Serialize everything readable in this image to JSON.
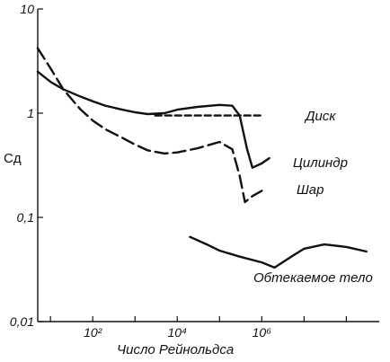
{
  "chart_data": {
    "type": "line",
    "title": "",
    "xlabel": "Число Рейнольдса",
    "ylabel": "Сд",
    "x_scale": "log",
    "y_scale": "log",
    "xlim": [
      5,
      600000000
    ],
    "ylim": [
      0.01,
      10
    ],
    "grid": false,
    "legend": "inline labels",
    "x_tick_labels": [
      {
        "value": 100,
        "label": "10²"
      },
      {
        "value": 10000,
        "label": "10⁴"
      },
      {
        "value": 1000000,
        "label": "10⁶"
      }
    ],
    "y_tick_labels": [
      {
        "value": 10,
        "label": "10"
      },
      {
        "value": 1,
        "label": "1"
      },
      {
        "value": 0.1,
        "label": "0,1"
      },
      {
        "value": 0.01,
        "label": "0,01"
      }
    ],
    "series": [
      {
        "name": "Цилиндр",
        "style": "solid",
        "points": [
          [
            5,
            2.5
          ],
          [
            10,
            2.0
          ],
          [
            20,
            1.7
          ],
          [
            50,
            1.45
          ],
          [
            100,
            1.3
          ],
          [
            200,
            1.18
          ],
          [
            500,
            1.08
          ],
          [
            1000,
            1.02
          ],
          [
            2000,
            0.98
          ],
          [
            5000,
            1.0
          ],
          [
            10000,
            1.08
          ],
          [
            30000,
            1.15
          ],
          [
            100000,
            1.2
          ],
          [
            200000,
            1.18
          ],
          [
            300000,
            0.95
          ],
          [
            450000,
            0.45
          ],
          [
            600000,
            0.3
          ],
          [
            1000000,
            0.33
          ],
          [
            1500000,
            0.37
          ]
        ]
      },
      {
        "name": "Шар",
        "style": "dashed",
        "points": [
          [
            5,
            4.2
          ],
          [
            10,
            2.7
          ],
          [
            20,
            1.7
          ],
          [
            50,
            1.1
          ],
          [
            100,
            0.85
          ],
          [
            200,
            0.7
          ],
          [
            500,
            0.58
          ],
          [
            1000,
            0.5
          ],
          [
            2000,
            0.44
          ],
          [
            5000,
            0.41
          ],
          [
            10000,
            0.42
          ],
          [
            30000,
            0.46
          ],
          [
            100000,
            0.53
          ],
          [
            200000,
            0.45
          ],
          [
            300000,
            0.25
          ],
          [
            400000,
            0.14
          ],
          [
            600000,
            0.16
          ],
          [
            1000000,
            0.18
          ]
        ]
      },
      {
        "name": "Диск",
        "style": "dashed",
        "points": [
          [
            3000,
            0.95
          ],
          [
            1000000,
            0.95
          ]
        ]
      },
      {
        "name": "Обтекаемое тело",
        "style": "solid",
        "points": [
          [
            20000,
            0.065
          ],
          [
            50000,
            0.055
          ],
          [
            100000,
            0.048
          ],
          [
            300000,
            0.042
          ],
          [
            1000000,
            0.037
          ],
          [
            2000000,
            0.033
          ],
          [
            5000000,
            0.042
          ],
          [
            10000000,
            0.05
          ],
          [
            30000000,
            0.055
          ],
          [
            100000000,
            0.052
          ],
          [
            300000000,
            0.047
          ]
        ]
      }
    ]
  }
}
